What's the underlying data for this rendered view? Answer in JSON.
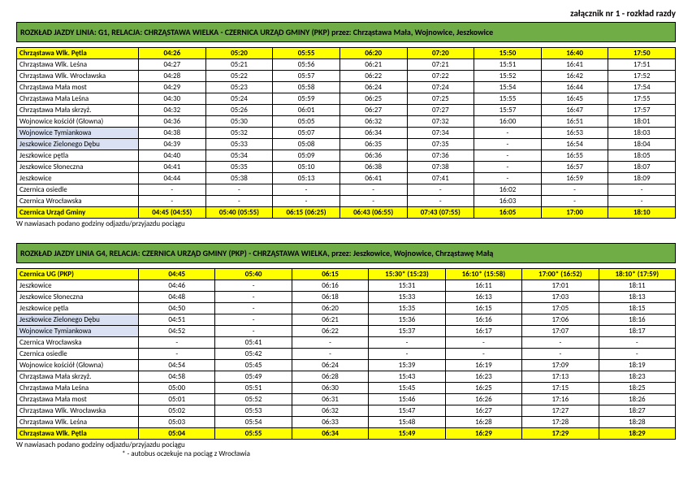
{
  "header": {
    "title": "załącznik nr 1 - rozkład razdy"
  },
  "colors": {
    "banner": "#70ad47",
    "highlight_row_bg": "#ffff00",
    "alt_stop_bg": "#d9e1f2"
  },
  "tables": [
    {
      "banner": "ROZKŁAD JAZDY LINIA: G1, RELACJA: CHRZĄSTAWA WIELKA - CZERNICA URZĄD GMINY (PKP) przez: Chrząstawa Mała, Wojnowice, Jeszkowice",
      "header_stop": "Chrząstawa Wlk. Pętla",
      "header_times": [
        "04:26",
        "05:20",
        "05:55",
        "06:20",
        "07:20",
        "15:50",
        "16:40",
        "17:50"
      ],
      "rows": [
        {
          "stop": "Chrząstawa Wlk. Leśna",
          "times": [
            "04:27",
            "05:21",
            "05:56",
            "06:21",
            "07:21",
            "15:51",
            "16:41",
            "17:51"
          ],
          "hl": false
        },
        {
          "stop": "Chrząstawa Wlk. Wrocławska",
          "times": [
            "04:28",
            "05:22",
            "05:57",
            "06:22",
            "07:22",
            "15:52",
            "16:42",
            "17:52"
          ],
          "hl": false
        },
        {
          "stop": "Chrząstawa Mała most",
          "times": [
            "04:29",
            "05:23",
            "05:58",
            "06:24",
            "07:24",
            "15:54",
            "16:44",
            "17:54"
          ],
          "hl": false
        },
        {
          "stop": "Chrząstawa Mała Leśna",
          "times": [
            "04:30",
            "05:24",
            "05:59",
            "06:25",
            "07:25",
            "15:55",
            "16:45",
            "17:55"
          ],
          "hl": false
        },
        {
          "stop": "Chrząstawa Mała skrzyż.",
          "times": [
            "04:32",
            "05:26",
            "06:01",
            "06:27",
            "07:27",
            "15:57",
            "16:47",
            "17:57"
          ],
          "hl": false
        },
        {
          "stop": "Wojnowice kościół (Głowna)",
          "times": [
            "04:36",
            "05:30",
            "05:05",
            "06:32",
            "07:32",
            "16:00",
            "16:51",
            "18:01"
          ],
          "hl": false
        },
        {
          "stop": "Wojnowice Tymiankowa",
          "times": [
            "04:38",
            "05:32",
            "05:07",
            "06:34",
            "07:34",
            "-",
            "16:53",
            "18:03"
          ],
          "hl": true
        },
        {
          "stop": "Jeszkowice Zielonego Dębu",
          "times": [
            "04:39",
            "05:33",
            "05:08",
            "06:35",
            "07:35",
            "-",
            "16:54",
            "18:04"
          ],
          "hl": true
        },
        {
          "stop": "Jeszkowice pętla",
          "times": [
            "04:40",
            "05:34",
            "05:09",
            "06:36",
            "07:36",
            "-",
            "16:55",
            "18:05"
          ],
          "hl": false
        },
        {
          "stop": "Jeszkowice Słoneczna",
          "times": [
            "04:41",
            "05:35",
            "05:10",
            "06:38",
            "07:38",
            "-",
            "16:57",
            "18:07"
          ],
          "hl": false
        },
        {
          "stop": "Jeszkowice",
          "times": [
            "04:44",
            "05:38",
            "05:13",
            "06:41",
            "07:41",
            "-",
            "16:59",
            "18:09"
          ],
          "hl": false
        },
        {
          "stop": "Czernica osiedle",
          "times": [
            "-",
            "-",
            "-",
            "-",
            "-",
            "16:02",
            "-",
            "-"
          ],
          "hl": false
        },
        {
          "stop": "Czernica Wrocławska",
          "times": [
            "-",
            "-",
            "-",
            "-",
            "-",
            "16:03",
            "-",
            "-"
          ],
          "hl": false
        }
      ],
      "footer_stop": "Czernica Urząd Gminy",
      "footer_times": [
        "04:45 (04:55)",
        "05:40 (05:55)",
        "06:15 (06:25)",
        "06:43 (06:55)",
        "07:43 (07:55)",
        "16:05",
        "17:00",
        "18:10"
      ],
      "note": "W nawiasach podano godziny odjazdu/przyjazdu pociągu"
    },
    {
      "banner": "ROZKŁAD JAZDY LINIA G4, RELACJA: CZERNICA URZĄD GMINY (PKP) - CHRZĄSTAWA WIELKA, przez: Jeszkowice, Wojnowice, Chrząstawę Małą",
      "header_stop": "Czernica UG (PKP)",
      "header_times": [
        "04:45",
        "05:40",
        "06:15",
        "15:30* (15:23)",
        "16:10* (15:58)",
        "17:00* (16:52)",
        "18:10* (17:59)"
      ],
      "rows": [
        {
          "stop": "Jeszkowice",
          "times": [
            "04:46",
            "-",
            "06:16",
            "15:31",
            "16:11",
            "17:01",
            "18:11"
          ],
          "hl": false
        },
        {
          "stop": "Jeszkowice Słoneczna",
          "times": [
            "04:48",
            "-",
            "06:18",
            "15:33",
            "16:13",
            "17:03",
            "18:13"
          ],
          "hl": false
        },
        {
          "stop": "Jeszkowice pętla",
          "times": [
            "04:50",
            "-",
            "06:20",
            "15:35",
            "16:15",
            "17:05",
            "18:15"
          ],
          "hl": false
        },
        {
          "stop": "Jeszkowice Zielonego Dębu",
          "times": [
            "04:51",
            "-",
            "06:21",
            "15:36",
            "16:16",
            "17:06",
            "18:16"
          ],
          "hl": true
        },
        {
          "stop": "Wojnowice Tymiankowa",
          "times": [
            "04:52",
            "-",
            "06:22",
            "15:37",
            "16:17",
            "17:07",
            "18:17"
          ],
          "hl": true
        },
        {
          "stop": "Czernica Wrocławska",
          "times": [
            "-",
            "05:41",
            "-",
            "-",
            "-",
            "-",
            "-"
          ],
          "hl": false
        },
        {
          "stop": "Czernica osiedle",
          "times": [
            "-",
            "05:42",
            "-",
            "-",
            "-",
            "-",
            "-"
          ],
          "hl": false
        },
        {
          "stop": "Wojnowice kościół (Głowna)",
          "times": [
            "04:54",
            "05:45",
            "06:24",
            "15:39",
            "16:19",
            "17:09",
            "18:19"
          ],
          "hl": false
        },
        {
          "stop": "Chrząstawa Mała skrzyż.",
          "times": [
            "04:58",
            "05:49",
            "06:28",
            "15:43",
            "16:23",
            "17:13",
            "18:23"
          ],
          "hl": false
        },
        {
          "stop": "Chrząstawa Mała Leśna",
          "times": [
            "05:00",
            "05:51",
            "06:30",
            "15:45",
            "16:25",
            "17:15",
            "18:25"
          ],
          "hl": false
        },
        {
          "stop": "Chrząstawa Mała most",
          "times": [
            "05:01",
            "05:52",
            "06:31",
            "15:46",
            "16:26",
            "17:16",
            "18:26"
          ],
          "hl": false
        },
        {
          "stop": "Chrząstawa Wlk. Wrocławska",
          "times": [
            "05:02",
            "05:53",
            "06:32",
            "15:47",
            "16:27",
            "17:27",
            "18:27"
          ],
          "hl": false
        },
        {
          "stop": "Chrząstawa Wlk. Leśna",
          "times": [
            "05:03",
            "05:54",
            "06:33",
            "15:48",
            "16:28",
            "17:28",
            "18:28"
          ],
          "hl": false
        }
      ],
      "footer_stop": "Chrząstawa Wlk. Pętla",
      "footer_times": [
        "05:04",
        "05:55",
        "06:34",
        "15:49",
        "16:29",
        "17:29",
        "18:29"
      ],
      "note": "W nawiasach podano godziny odjazdu/przyjazdu pociągu",
      "note2": "* - autobus oczekuje na pociąg z Wrocławia"
    }
  ]
}
